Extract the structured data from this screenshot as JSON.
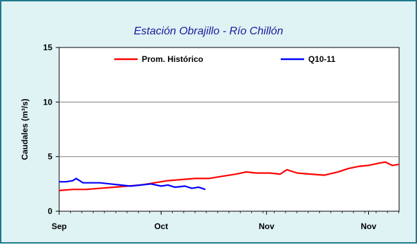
{
  "chart_data": {
    "type": "line",
    "title": "Estación Obrajillo - Río Chillón",
    "xlabel": "",
    "ylabel": "Caudales (m³/s)",
    "ylim": [
      0,
      15
    ],
    "yticks": [
      0,
      5,
      10,
      15
    ],
    "xlim": [
      0,
      100
    ],
    "xticks": [
      {
        "pos": 0,
        "label": "Sep"
      },
      {
        "pos": 30,
        "label": "Oct"
      },
      {
        "pos": 61,
        "label": "Nov"
      },
      {
        "pos": 91,
        "label": "Nov"
      }
    ],
    "grid_y": true,
    "legend_position": "top",
    "series": [
      {
        "name": "Prom. Histórico",
        "color": "#ff0000",
        "x": [
          0,
          4,
          8,
          12,
          16,
          20,
          24,
          28,
          32,
          36,
          40,
          44,
          48,
          52,
          55,
          58,
          62,
          65,
          67,
          70,
          74,
          78,
          82,
          85,
          88,
          91,
          94,
          96,
          98,
          100
        ],
        "y": [
          1.9,
          2.0,
          2.0,
          2.1,
          2.2,
          2.3,
          2.4,
          2.6,
          2.8,
          2.9,
          3.0,
          3.0,
          3.2,
          3.4,
          3.6,
          3.5,
          3.5,
          3.4,
          3.8,
          3.5,
          3.4,
          3.3,
          3.6,
          3.9,
          4.1,
          4.2,
          4.4,
          4.5,
          4.2,
          4.3
        ]
      },
      {
        "name": "Q10-11",
        "color": "#0000ff",
        "x": [
          0,
          2,
          4,
          5,
          7,
          9,
          12,
          15,
          18,
          21,
          24,
          27,
          30,
          32,
          34,
          37,
          39,
          41,
          43
        ],
        "y": [
          2.7,
          2.7,
          2.8,
          3.0,
          2.6,
          2.6,
          2.6,
          2.5,
          2.4,
          2.3,
          2.4,
          2.5,
          2.3,
          2.4,
          2.2,
          2.3,
          2.1,
          2.2,
          2.0
        ]
      }
    ]
  },
  "colors": {
    "background": "#dff2f4",
    "plot_area": "#ffffff",
    "title": "#1a1a9c",
    "frame_border": "#1e7a8c",
    "gridline": "#8c8c8c"
  }
}
